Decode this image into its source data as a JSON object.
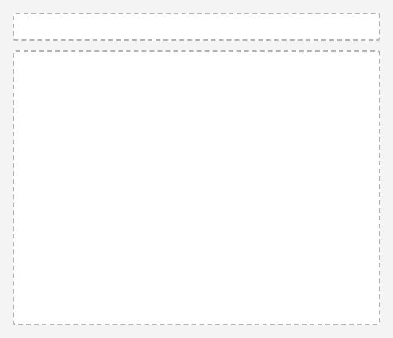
{
  "title": "",
  "columns": [],
  "rows": []
}
